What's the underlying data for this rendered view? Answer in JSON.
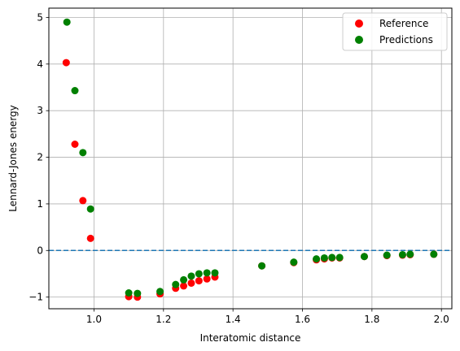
{
  "chart_data": {
    "type": "scatter",
    "xlabel": "Interatomic distance",
    "ylabel": "Lennard-Jones energy",
    "xlim": [
      0.87,
      2.03
    ],
    "ylim": [
      -1.25,
      5.2
    ],
    "xticks": [
      1.0,
      1.2,
      1.4,
      1.6,
      1.8,
      2.0
    ],
    "xtick_labels": [
      "1.0",
      "1.2",
      "1.4",
      "1.6",
      "1.8",
      "2.0"
    ],
    "yticks": [
      -1,
      0,
      1,
      2,
      3,
      4,
      5
    ],
    "ytick_labels": [
      "−1",
      "0",
      "1",
      "2",
      "3",
      "4",
      "5"
    ],
    "grid": true,
    "legend_position": "top-right",
    "reference_line": {
      "y": 0,
      "style": "dashed",
      "color": "#1f77b4"
    },
    "series": [
      {
        "name": "Reference",
        "color": "#ff0000",
        "points": [
          [
            0.92,
            4.03
          ],
          [
            0.945,
            2.28
          ],
          [
            0.968,
            1.07
          ],
          [
            0.99,
            0.26
          ],
          [
            1.1,
            -0.99
          ],
          [
            1.125,
            -1.0
          ],
          [
            1.19,
            -0.93
          ],
          [
            1.235,
            -0.81
          ],
          [
            1.258,
            -0.76
          ],
          [
            1.28,
            -0.7
          ],
          [
            1.302,
            -0.65
          ],
          [
            1.325,
            -0.61
          ],
          [
            1.348,
            -0.57
          ],
          [
            1.483,
            -0.33
          ],
          [
            1.575,
            -0.26
          ],
          [
            1.64,
            -0.2
          ],
          [
            1.663,
            -0.18
          ],
          [
            1.685,
            -0.16
          ],
          [
            1.707,
            -0.16
          ],
          [
            1.778,
            -0.13
          ],
          [
            1.843,
            -0.11
          ],
          [
            1.888,
            -0.1
          ],
          [
            1.91,
            -0.09
          ],
          [
            1.978,
            -0.08
          ]
        ]
      },
      {
        "name": "Predictions",
        "color": "#008000",
        "points": [
          [
            0.922,
            4.9
          ],
          [
            0.945,
            3.43
          ],
          [
            0.968,
            2.1
          ],
          [
            0.99,
            0.89
          ],
          [
            1.1,
            -0.91
          ],
          [
            1.125,
            -0.92
          ],
          [
            1.19,
            -0.88
          ],
          [
            1.235,
            -0.73
          ],
          [
            1.258,
            -0.63
          ],
          [
            1.28,
            -0.55
          ],
          [
            1.302,
            -0.5
          ],
          [
            1.325,
            -0.48
          ],
          [
            1.348,
            -0.48
          ],
          [
            1.483,
            -0.33
          ],
          [
            1.575,
            -0.25
          ],
          [
            1.64,
            -0.18
          ],
          [
            1.663,
            -0.16
          ],
          [
            1.685,
            -0.15
          ],
          [
            1.707,
            -0.15
          ],
          [
            1.778,
            -0.13
          ],
          [
            1.843,
            -0.1
          ],
          [
            1.888,
            -0.09
          ],
          [
            1.91,
            -0.08
          ],
          [
            1.978,
            -0.08
          ]
        ]
      }
    ]
  }
}
